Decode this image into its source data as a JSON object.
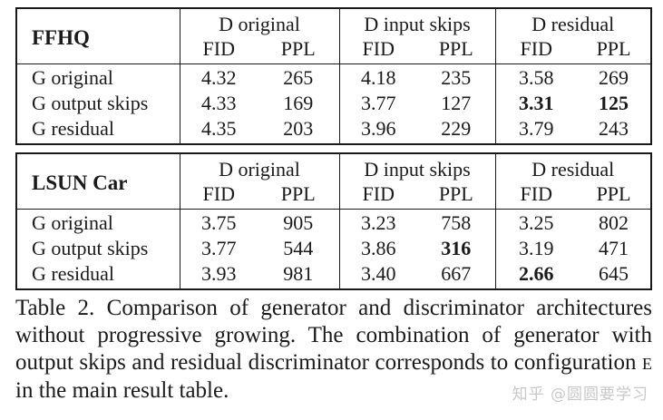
{
  "tables": [
    {
      "label": "FFHQ",
      "d_headers": [
        "D original",
        "D input skips",
        "D residual"
      ],
      "sub_fid": "FID",
      "sub_ppl": "PPL",
      "rows": [
        {
          "name": "G original",
          "vals": [
            "4.32",
            "265",
            "4.18",
            "235",
            "3.58",
            "269"
          ]
        },
        {
          "name": "G output skips",
          "vals": [
            "4.33",
            "169",
            "3.77",
            "127",
            "3.31",
            "125"
          ]
        },
        {
          "name": "G residual",
          "vals": [
            "4.35",
            "203",
            "3.96",
            "229",
            "3.79",
            "243"
          ]
        }
      ]
    },
    {
      "label": "LSUN Car",
      "d_headers": [
        "D original",
        "D input skips",
        "D residual"
      ],
      "sub_fid": "FID",
      "sub_ppl": "PPL",
      "rows": [
        {
          "name": "G original",
          "vals": [
            "3.75",
            "905",
            "3.23",
            "758",
            "3.25",
            "802"
          ]
        },
        {
          "name": "G output skips",
          "vals": [
            "3.77",
            "544",
            "3.86",
            "316",
            "3.19",
            "471"
          ]
        },
        {
          "name": "G residual",
          "vals": [
            "3.93",
            "981",
            "3.40",
            "667",
            "2.66",
            "645"
          ]
        }
      ]
    }
  ],
  "caption": {
    "main": "Table 2.  Comparison of generator and discriminator architectures without progressive growing. The combination of generator with output skips and residual discriminator corresponds to configuration ",
    "config": "E",
    "tail": " in the main result table."
  },
  "watermark": "知乎 @圆圆要学习"
}
